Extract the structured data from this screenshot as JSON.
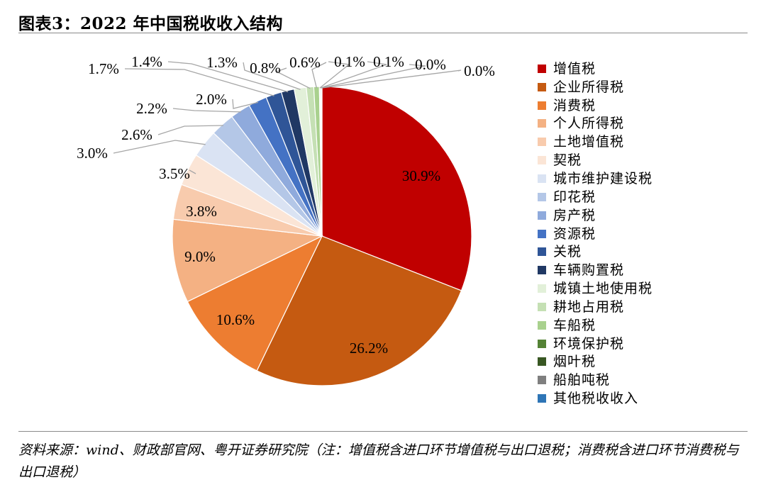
{
  "title": "图表3：2022 年中国税收收入结构",
  "source": "资料来源：wind、财政部官网、粤开证券研究院（注：增值税含进口环节增值税与出口退税；消费税含进口环节消费税与出口退税）",
  "chart_data": {
    "type": "pie",
    "title": "2022 年中国税收收入结构",
    "legend_position": "right",
    "categories": [
      "增值税",
      "企业所得税",
      "消费税",
      "个人所得税",
      "土地增值税",
      "契税",
      "城市维护建设税",
      "印花税",
      "房产税",
      "资源税",
      "关税",
      "车辆购置税",
      "城镇土地使用税",
      "耕地占用税",
      "车船税",
      "环境保护税",
      "烟叶税",
      "船舶吨税",
      "其他税收收入"
    ],
    "values": [
      30.9,
      26.2,
      10.6,
      9.0,
      3.8,
      3.5,
      3.0,
      2.6,
      2.2,
      2.0,
      1.7,
      1.4,
      1.3,
      0.8,
      0.6,
      0.1,
      0.1,
      0.0,
      0.0
    ],
    "labels": [
      "30.9%",
      "26.2%",
      "10.6%",
      "9.0%",
      "3.8%",
      "3.5%",
      "3.0%",
      "2.6%",
      "2.2%",
      "2.0%",
      "1.7%",
      "1.4%",
      "1.3%",
      "0.8%",
      "0.6%",
      "0.1%",
      "0.1%",
      "0.0%",
      "0.0%"
    ],
    "colors": [
      "#C00000",
      "#C55A11",
      "#ED7D31",
      "#F4B183",
      "#F8CBAD",
      "#FBE5D6",
      "#DAE3F3",
      "#B4C7E7",
      "#8FAADC",
      "#4472C4",
      "#2F5597",
      "#203864",
      "#E2F0D9",
      "#C5E0B4",
      "#A9D18E",
      "#548235",
      "#385723",
      "#7F7F7F",
      "#2E75B6"
    ]
  }
}
